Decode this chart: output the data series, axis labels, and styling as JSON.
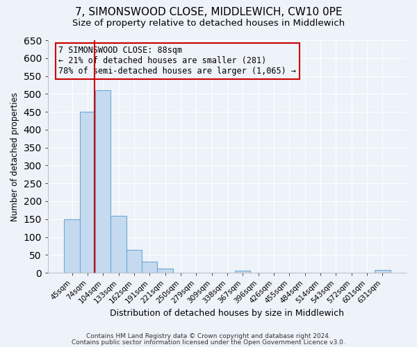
{
  "title1": "7, SIMONSWOOD CLOSE, MIDDLEWICH, CW10 0PE",
  "title2": "Size of property relative to detached houses in Middlewich",
  "xlabel": "Distribution of detached houses by size in Middlewich",
  "ylabel": "Number of detached properties",
  "bar_labels": [
    "45sqm",
    "74sqm",
    "104sqm",
    "133sqm",
    "162sqm",
    "191sqm",
    "221sqm",
    "250sqm",
    "279sqm",
    "309sqm",
    "338sqm",
    "367sqm",
    "396sqm",
    "426sqm",
    "455sqm",
    "484sqm",
    "514sqm",
    "543sqm",
    "572sqm",
    "601sqm",
    "631sqm"
  ],
  "bar_values": [
    150,
    450,
    510,
    160,
    65,
    32,
    12,
    0,
    0,
    0,
    0,
    5,
    0,
    0,
    0,
    0,
    0,
    0,
    0,
    0,
    8
  ],
  "bar_color": "#c5d9ef",
  "bar_edgecolor": "#6aaad4",
  "vline_x": 1.47,
  "vline_color": "#cc0000",
  "annotation_text": "7 SIMONSWOOD CLOSE: 88sqm\n← 21% of detached houses are smaller (281)\n78% of semi-detached houses are larger (1,065) →",
  "annotation_box_edgecolor": "#cc0000",
  "ylim": [
    0,
    650
  ],
  "yticks": [
    0,
    50,
    100,
    150,
    200,
    250,
    300,
    350,
    400,
    450,
    500,
    550,
    600,
    650
  ],
  "footer1": "Contains HM Land Registry data © Crown copyright and database right 2024.",
  "footer2": "Contains public sector information licensed under the Open Government Licence v3.0.",
  "bg_color": "#eef2f9",
  "grid_color": "#ffffff",
  "title1_fontsize": 11,
  "title2_fontsize": 9.5,
  "annot_fontsize": 8.5
}
